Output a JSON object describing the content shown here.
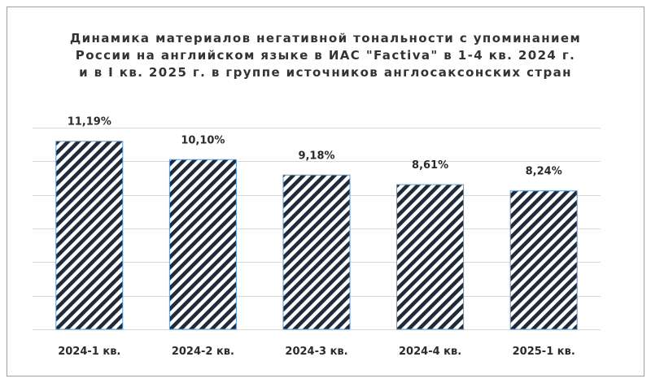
{
  "chart_data": {
    "type": "bar",
    "title_lines": [
      "Динамика материалов негативной тональности с упоминанием",
      "России на английском языке в ИАС \"Factiva\" в 1-4 кв. 2024 г.",
      "и в I кв. 2025 г. в группе источников англосаксонских стран"
    ],
    "categories": [
      "2024-1 кв.",
      "2024-2 кв.",
      "2024-3 кв.",
      "2024-4 кв.",
      "2025-1 кв."
    ],
    "values": [
      11.19,
      10.1,
      9.18,
      8.61,
      8.24
    ],
    "value_labels": [
      "11,19%",
      "10,10%",
      "9,18%",
      "8,61%",
      "8,24%"
    ],
    "ylim": [
      0,
      12
    ],
    "grid": true,
    "legend": "none",
    "colors": {
      "bar_hatch": "#1f2a3a",
      "bar_outline": "#5b9bd5",
      "grid": "#d9d9d9",
      "axis": "#d9d9d9",
      "text": "#2b2b2b"
    }
  }
}
